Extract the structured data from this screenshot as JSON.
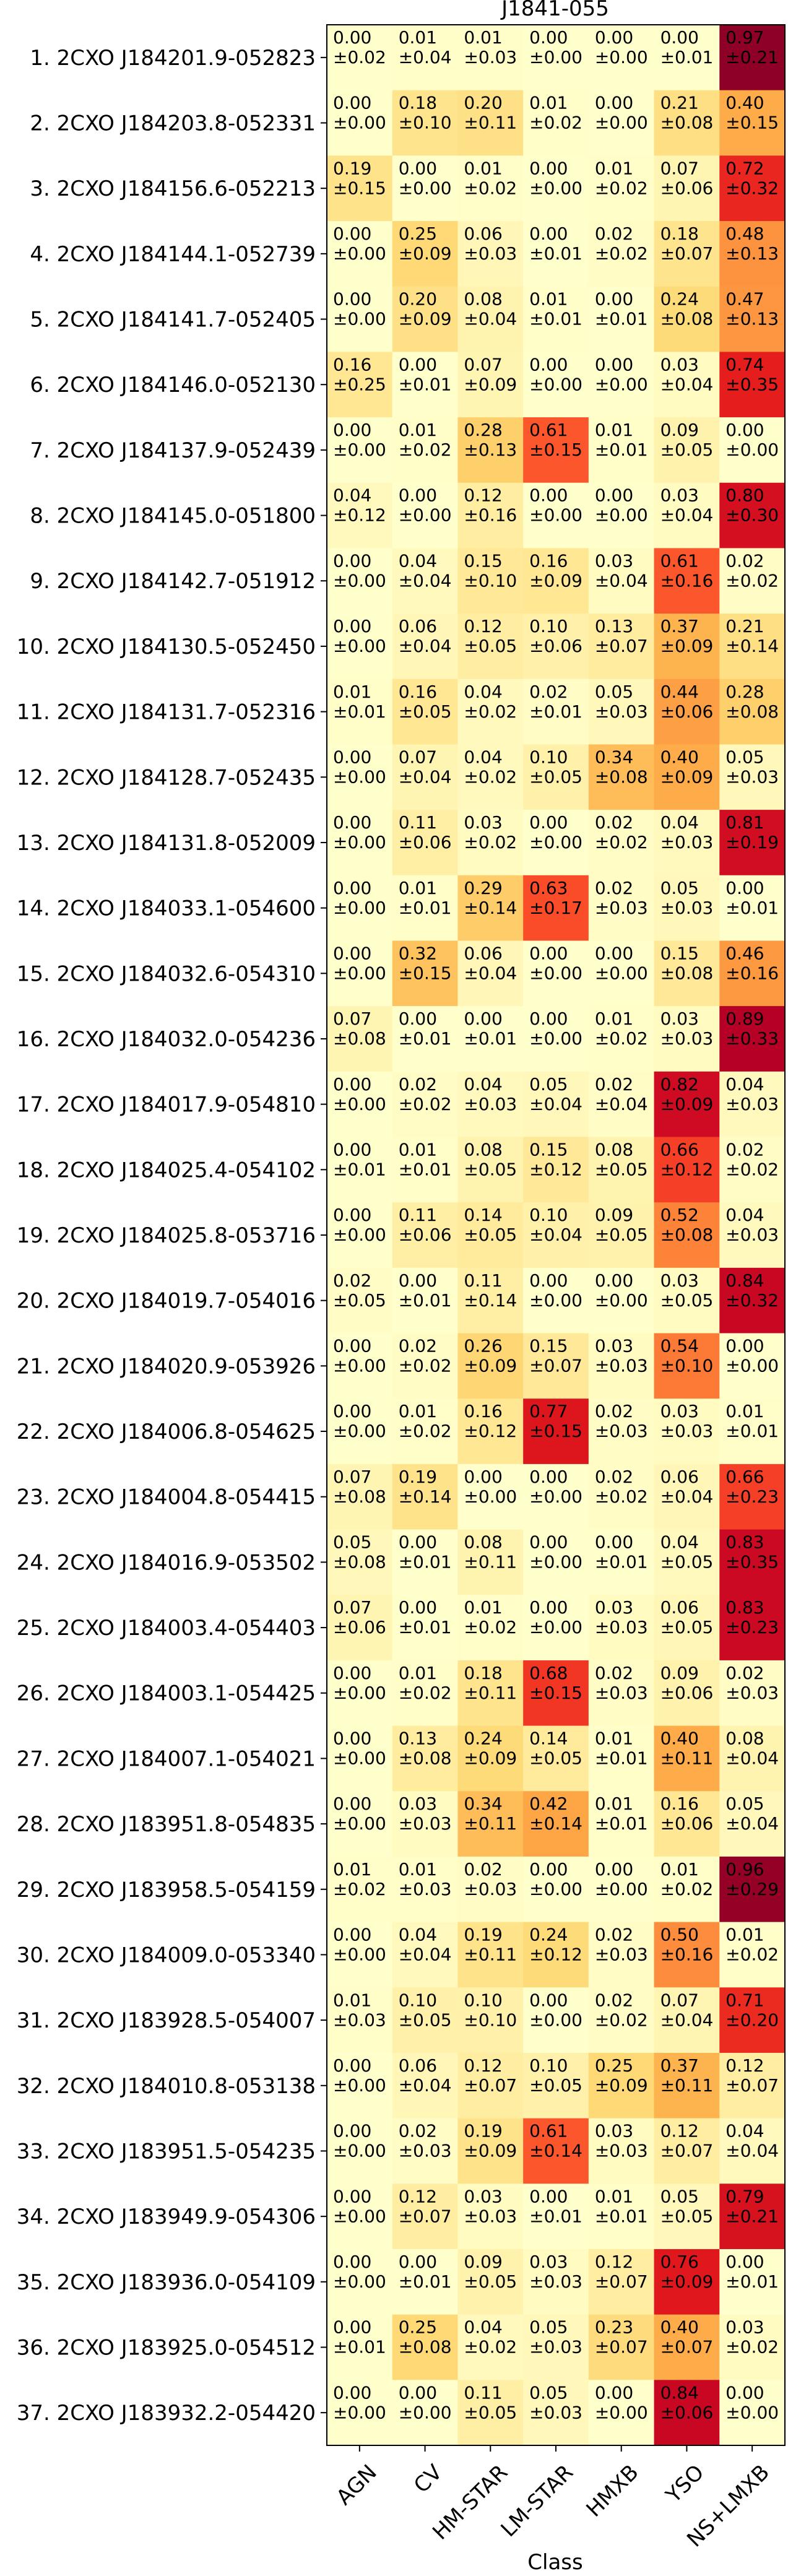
{
  "chart_data": {
    "type": "heatmap",
    "title": "J1841-055",
    "xlabel": "Class",
    "ylabel": "",
    "columns": [
      "AGN",
      "CV",
      "HM-STAR",
      "LM-STAR",
      "HMXB",
      "YSO",
      "NS+LMXB"
    ],
    "rows": [
      "1. 2CXO J184201.9-052823",
      "2. 2CXO J184203.8-052331",
      "3. 2CXO J184156.6-052213",
      "4. 2CXO J184144.1-052739",
      "5. 2CXO J184141.7-052405",
      "6. 2CXO J184146.0-052130",
      "7. 2CXO J184137.9-052439",
      "8. 2CXO J184145.0-051800",
      "9. 2CXO J184142.7-051912",
      "10. 2CXO J184130.5-052450",
      "11. 2CXO J184131.7-052316",
      "12. 2CXO J184128.7-052435",
      "13. 2CXO J184131.8-052009",
      "14. 2CXO J184033.1-054600",
      "15. 2CXO J184032.6-054310",
      "16. 2CXO J184032.0-054236",
      "17. 2CXO J184017.9-054810",
      "18. 2CXO J184025.4-054102",
      "19. 2CXO J184025.8-053716",
      "20. 2CXO J184019.7-054016",
      "21. 2CXO J184020.9-053926",
      "22. 2CXO J184006.8-054625",
      "23. 2CXO J184004.8-054415",
      "24. 2CXO J184016.9-053502",
      "25. 2CXO J184003.4-054403",
      "26. 2CXO J184003.1-054425",
      "27. 2CXO J184007.1-054021",
      "28. 2CXO J183951.8-054835",
      "29. 2CXO J183958.5-054159",
      "30. 2CXO J184009.0-053340",
      "31. 2CXO J183928.5-054007",
      "32. 2CXO J184010.8-053138",
      "33. 2CXO J183951.5-054235",
      "34. 2CXO J183949.9-054306",
      "35. 2CXO J183936.0-054109",
      "36. 2CXO J183925.0-054512",
      "37. 2CXO J183932.2-054420"
    ],
    "values": [
      [
        0.0,
        0.01,
        0.01,
        0.0,
        0.0,
        0.0,
        0.97
      ],
      [
        0.0,
        0.18,
        0.2,
        0.01,
        0.0,
        0.21,
        0.4
      ],
      [
        0.19,
        0.0,
        0.01,
        0.0,
        0.01,
        0.07,
        0.72
      ],
      [
        0.0,
        0.25,
        0.06,
        0.0,
        0.02,
        0.18,
        0.48
      ],
      [
        0.0,
        0.2,
        0.08,
        0.01,
        0.0,
        0.24,
        0.47
      ],
      [
        0.16,
        0.0,
        0.07,
        0.0,
        0.0,
        0.03,
        0.74
      ],
      [
        0.0,
        0.01,
        0.28,
        0.61,
        0.01,
        0.09,
        0.0
      ],
      [
        0.04,
        0.0,
        0.12,
        0.0,
        0.0,
        0.03,
        0.8
      ],
      [
        0.0,
        0.04,
        0.15,
        0.16,
        0.03,
        0.61,
        0.02
      ],
      [
        0.0,
        0.06,
        0.12,
        0.1,
        0.13,
        0.37,
        0.21
      ],
      [
        0.01,
        0.16,
        0.04,
        0.02,
        0.05,
        0.44,
        0.28
      ],
      [
        0.0,
        0.07,
        0.04,
        0.1,
        0.34,
        0.4,
        0.05
      ],
      [
        0.0,
        0.11,
        0.03,
        0.0,
        0.02,
        0.04,
        0.81
      ],
      [
        0.0,
        0.01,
        0.29,
        0.63,
        0.02,
        0.05,
        0.0
      ],
      [
        0.0,
        0.32,
        0.06,
        0.0,
        0.0,
        0.15,
        0.46
      ],
      [
        0.07,
        0.0,
        0.0,
        0.0,
        0.01,
        0.03,
        0.89
      ],
      [
        0.0,
        0.02,
        0.04,
        0.05,
        0.02,
        0.82,
        0.04
      ],
      [
        0.0,
        0.01,
        0.08,
        0.15,
        0.08,
        0.66,
        0.02
      ],
      [
        0.0,
        0.11,
        0.14,
        0.1,
        0.09,
        0.52,
        0.04
      ],
      [
        0.02,
        0.0,
        0.11,
        0.0,
        0.0,
        0.03,
        0.84
      ],
      [
        0.0,
        0.02,
        0.26,
        0.15,
        0.03,
        0.54,
        0.0
      ],
      [
        0.0,
        0.01,
        0.16,
        0.77,
        0.02,
        0.03,
        0.01
      ],
      [
        0.07,
        0.19,
        0.0,
        0.0,
        0.02,
        0.06,
        0.66
      ],
      [
        0.05,
        0.0,
        0.08,
        0.0,
        0.0,
        0.04,
        0.83
      ],
      [
        0.07,
        0.0,
        0.01,
        0.0,
        0.03,
        0.06,
        0.83
      ],
      [
        0.0,
        0.01,
        0.18,
        0.68,
        0.02,
        0.09,
        0.02
      ],
      [
        0.0,
        0.13,
        0.24,
        0.14,
        0.01,
        0.4,
        0.08
      ],
      [
        0.0,
        0.03,
        0.34,
        0.42,
        0.01,
        0.16,
        0.05
      ],
      [
        0.01,
        0.01,
        0.02,
        0.0,
        0.0,
        0.01,
        0.96
      ],
      [
        0.0,
        0.04,
        0.19,
        0.24,
        0.02,
        0.5,
        0.01
      ],
      [
        0.01,
        0.1,
        0.1,
        0.0,
        0.02,
        0.07,
        0.71
      ],
      [
        0.0,
        0.06,
        0.12,
        0.1,
        0.25,
        0.37,
        0.12
      ],
      [
        0.0,
        0.02,
        0.19,
        0.61,
        0.03,
        0.12,
        0.04
      ],
      [
        0.0,
        0.12,
        0.03,
        0.0,
        0.01,
        0.05,
        0.79
      ],
      [
        0.0,
        0.0,
        0.09,
        0.03,
        0.12,
        0.76,
        0.0
      ],
      [
        0.0,
        0.25,
        0.04,
        0.05,
        0.23,
        0.4,
        0.03
      ],
      [
        0.0,
        0.0,
        0.11,
        0.05,
        0.0,
        0.84,
        0.0
      ]
    ],
    "errors": [
      [
        0.02,
        0.04,
        0.03,
        0.0,
        0.0,
        0.01,
        0.21
      ],
      [
        0.0,
        0.1,
        0.11,
        0.02,
        0.0,
        0.08,
        0.15
      ],
      [
        0.15,
        0.0,
        0.02,
        0.0,
        0.02,
        0.06,
        0.32
      ],
      [
        0.0,
        0.09,
        0.03,
        0.01,
        0.02,
        0.07,
        0.13
      ],
      [
        0.0,
        0.09,
        0.04,
        0.01,
        0.01,
        0.08,
        0.13
      ],
      [
        0.25,
        0.01,
        0.09,
        0.0,
        0.0,
        0.04,
        0.35
      ],
      [
        0.0,
        0.02,
        0.13,
        0.15,
        0.01,
        0.05,
        0.0
      ],
      [
        0.12,
        0.0,
        0.16,
        0.0,
        0.0,
        0.04,
        0.3
      ],
      [
        0.0,
        0.04,
        0.1,
        0.09,
        0.04,
        0.16,
        0.02
      ],
      [
        0.0,
        0.04,
        0.05,
        0.06,
        0.07,
        0.09,
        0.14
      ],
      [
        0.01,
        0.05,
        0.02,
        0.01,
        0.03,
        0.06,
        0.08
      ],
      [
        0.0,
        0.04,
        0.02,
        0.05,
        0.08,
        0.09,
        0.03
      ],
      [
        0.0,
        0.06,
        0.02,
        0.0,
        0.02,
        0.03,
        0.19
      ],
      [
        0.0,
        0.01,
        0.14,
        0.17,
        0.03,
        0.03,
        0.01
      ],
      [
        0.0,
        0.15,
        0.04,
        0.0,
        0.0,
        0.08,
        0.16
      ],
      [
        0.08,
        0.01,
        0.01,
        0.0,
        0.02,
        0.03,
        0.33
      ],
      [
        0.0,
        0.02,
        0.03,
        0.04,
        0.04,
        0.09,
        0.03
      ],
      [
        0.01,
        0.01,
        0.05,
        0.12,
        0.05,
        0.12,
        0.02
      ],
      [
        0.0,
        0.06,
        0.05,
        0.04,
        0.05,
        0.08,
        0.03
      ],
      [
        0.05,
        0.01,
        0.14,
        0.0,
        0.0,
        0.05,
        0.32
      ],
      [
        0.0,
        0.02,
        0.09,
        0.07,
        0.03,
        0.1,
        0.0
      ],
      [
        0.0,
        0.02,
        0.12,
        0.15,
        0.03,
        0.03,
        0.01
      ],
      [
        0.08,
        0.14,
        0.0,
        0.0,
        0.02,
        0.04,
        0.23
      ],
      [
        0.08,
        0.01,
        0.11,
        0.0,
        0.01,
        0.05,
        0.35
      ],
      [
        0.06,
        0.01,
        0.02,
        0.0,
        0.03,
        0.05,
        0.23
      ],
      [
        0.0,
        0.02,
        0.11,
        0.15,
        0.03,
        0.06,
        0.03
      ],
      [
        0.0,
        0.08,
        0.09,
        0.05,
        0.01,
        0.11,
        0.04
      ],
      [
        0.0,
        0.03,
        0.11,
        0.14,
        0.01,
        0.06,
        0.04
      ],
      [
        0.02,
        0.03,
        0.03,
        0.0,
        0.0,
        0.02,
        0.29
      ],
      [
        0.0,
        0.04,
        0.11,
        0.12,
        0.03,
        0.16,
        0.02
      ],
      [
        0.03,
        0.05,
        0.1,
        0.0,
        0.02,
        0.04,
        0.2
      ],
      [
        0.0,
        0.04,
        0.07,
        0.05,
        0.09,
        0.11,
        0.07
      ],
      [
        0.0,
        0.03,
        0.09,
        0.14,
        0.03,
        0.07,
        0.04
      ],
      [
        0.0,
        0.07,
        0.03,
        0.01,
        0.01,
        0.05,
        0.21
      ],
      [
        0.0,
        0.01,
        0.05,
        0.03,
        0.07,
        0.09,
        0.01
      ],
      [
        0.01,
        0.08,
        0.02,
        0.03,
        0.07,
        0.07,
        0.02
      ],
      [
        0.0,
        0.0,
        0.05,
        0.03,
        0.0,
        0.06,
        0.0
      ]
    ],
    "colormap": "YlOrRd",
    "value_range": [
      0,
      1
    ],
    "grid": false,
    "legend": "none"
  }
}
